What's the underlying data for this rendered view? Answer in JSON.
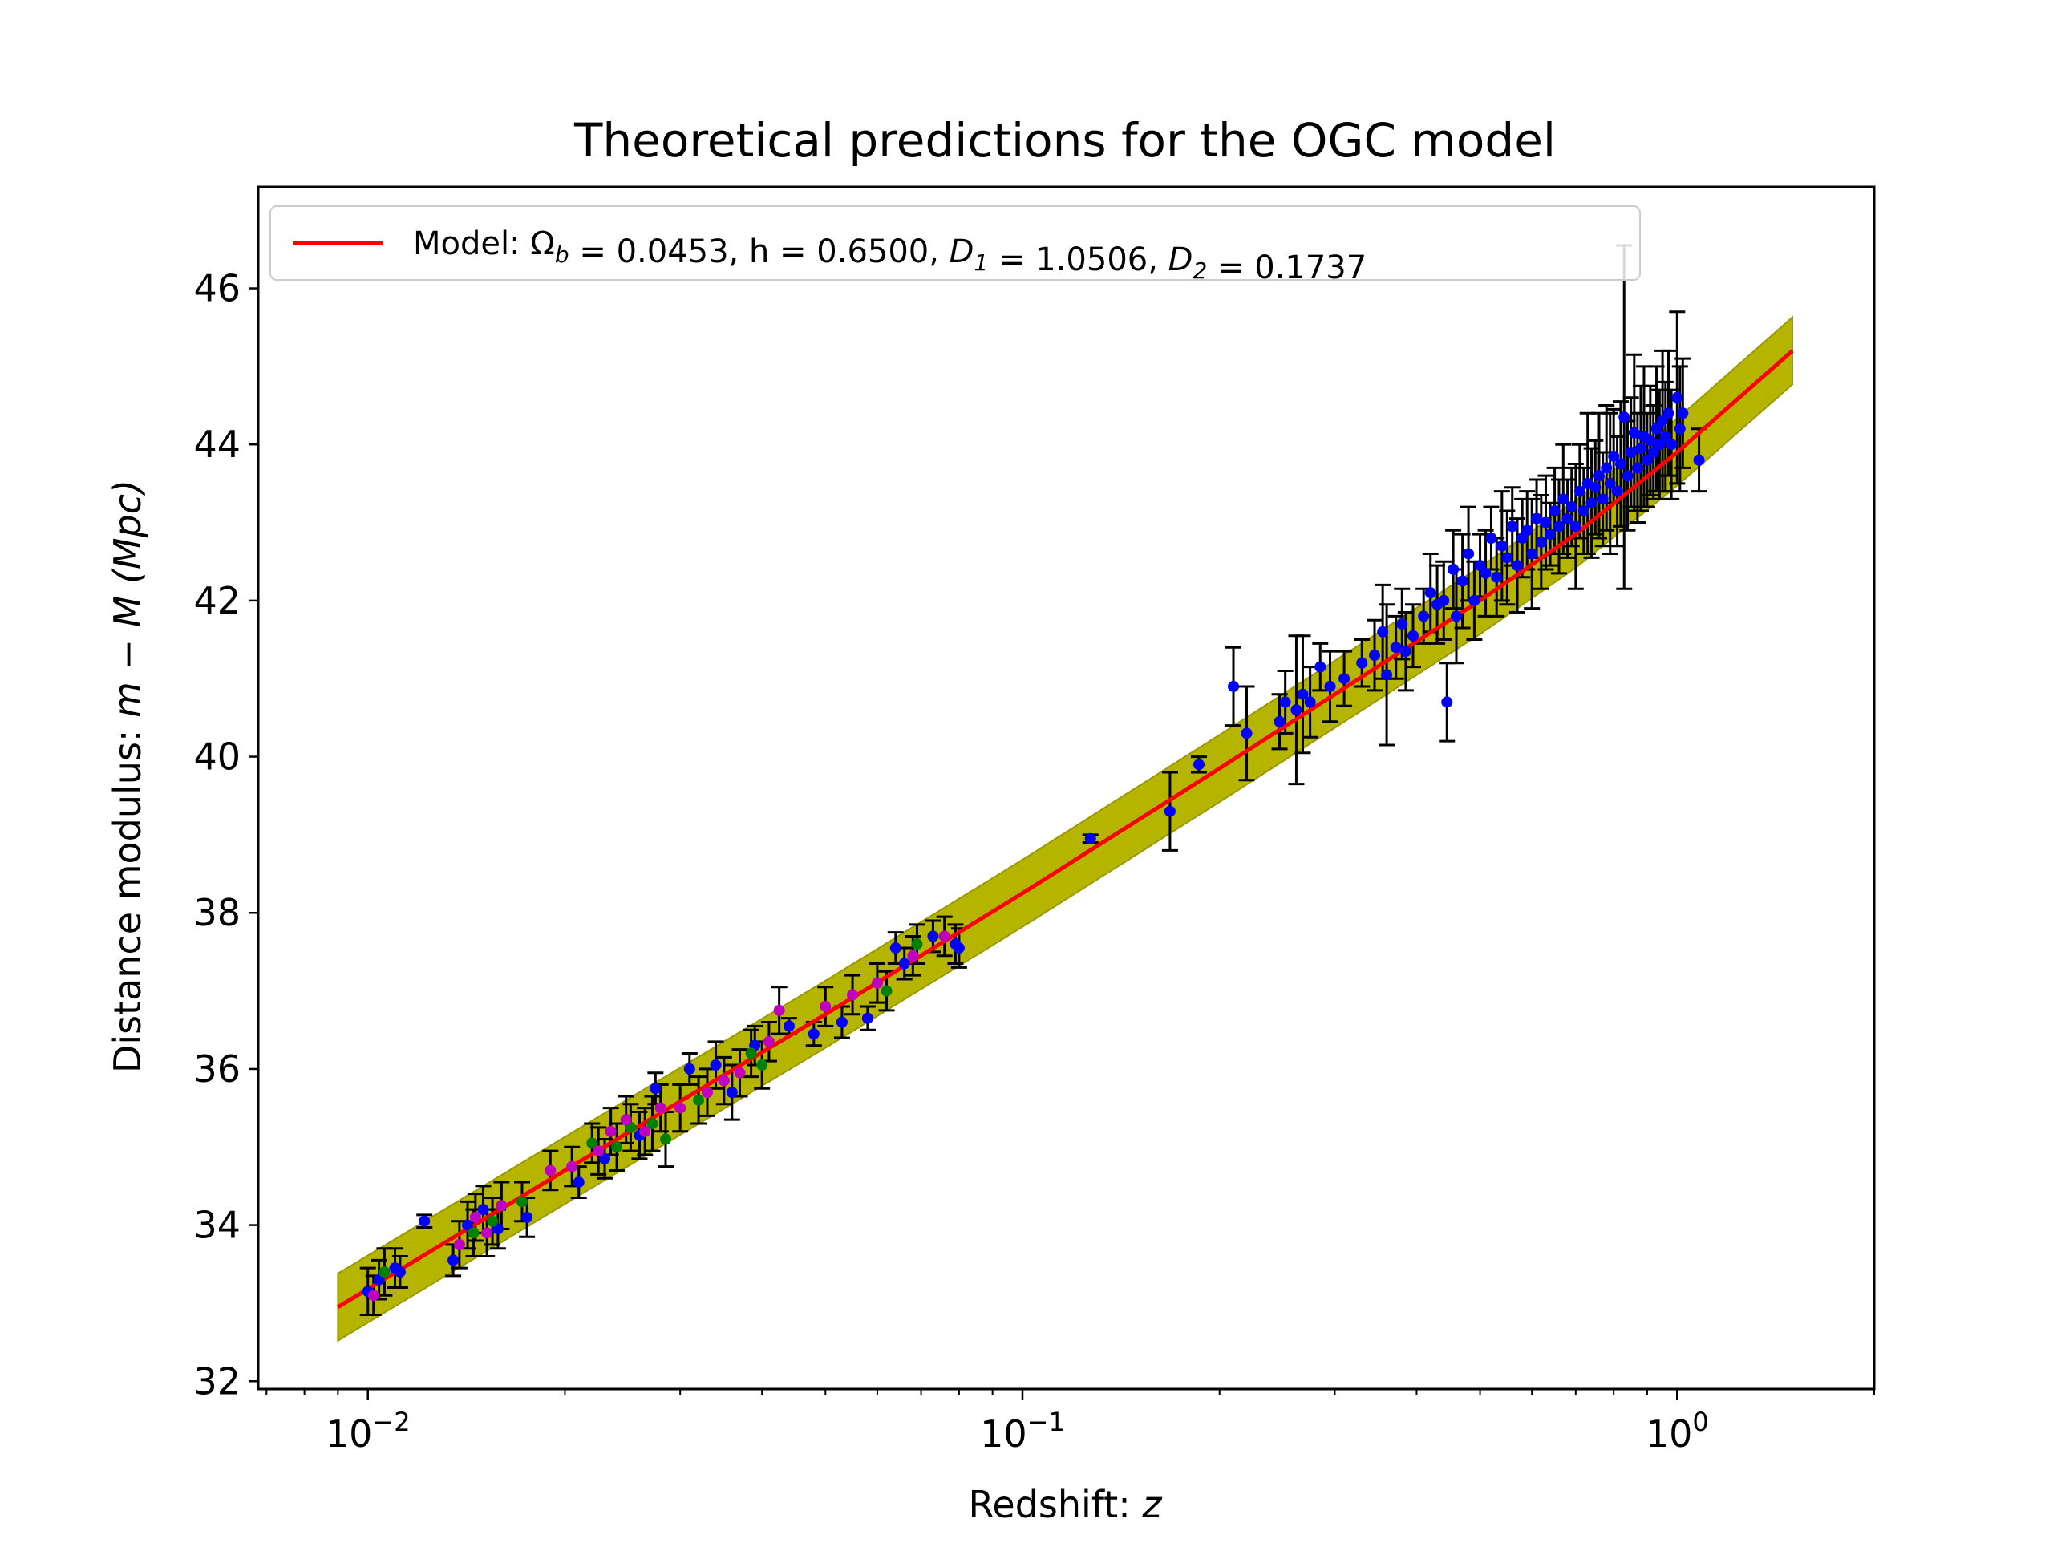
{
  "chart_data": {
    "type": "scatter",
    "title": "Theoretical predictions for the OGC model",
    "xlabel": {
      "text": "Redshift: ",
      "var": "z"
    },
    "ylabel": {
      "text": "Distance modulus: ",
      "var": "m − M",
      "unit": "(Mpc)"
    },
    "x_scale": "log",
    "xlim": [
      0.0068,
      2.0
    ],
    "ylim": [
      31.9,
      47.3
    ],
    "yticks": [
      32,
      34,
      36,
      38,
      40,
      42,
      44,
      46
    ],
    "xticks": [
      {
        "value": 0.01,
        "base": "10",
        "exp": "−2"
      },
      {
        "value": 0.1,
        "base": "10",
        "exp": "−1"
      },
      {
        "value": 1.0,
        "base": "10",
        "exp": "0"
      }
    ],
    "grid": false,
    "legend": {
      "placement": "top-left",
      "entries": [
        {
          "label": "Model: Ω_b = 0.0453, h = 0.6500, D_1 = 1.0506, D_2 = 0.1737",
          "parts": [
            {
              "t": "Model: Ω"
            },
            {
              "t": "b",
              "sub": true
            },
            {
              "t": " = 0.0453, h = 0.6500, "
            },
            {
              "t": "D",
              "italic": true
            },
            {
              "t": "1",
              "sub": true
            },
            {
              "t": " = 1.0506, "
            },
            {
              "t": "D",
              "italic": true
            },
            {
              "t": "2",
              "sub": true
            },
            {
              "t": " = 0.1737"
            }
          ],
          "color": "#ff0000"
        }
      ]
    },
    "model_curve": {
      "name": "Model: Ω_b = 0.0453, h = 0.6500, D_1 = 1.0506, D_2 = 0.1737",
      "color": "#ff0000",
      "x": [
        0.009,
        0.02,
        0.05,
        0.1,
        0.2,
        0.3,
        0.5,
        0.7,
        1.0,
        1.5
      ],
      "y": [
        32.95,
        34.7,
        36.7,
        38.25,
        39.85,
        40.8,
        42.0,
        42.85,
        43.9,
        45.2
      ]
    },
    "uncertainty_band": {
      "color": "#b5b500",
      "half_width": 0.43
    },
    "series": [
      {
        "color": "#0000ff",
        "points": [
          [
            0.01,
            33.15,
            0.3
          ],
          [
            0.0104,
            33.3,
            0.25
          ],
          [
            0.011,
            33.45,
            0.25
          ],
          [
            0.0112,
            33.4,
            0.2
          ],
          [
            0.0122,
            34.05,
            0.08
          ],
          [
            0.0135,
            33.55,
            0.2
          ],
          [
            0.0142,
            34.0,
            0.3
          ],
          [
            0.015,
            34.2,
            0.3
          ],
          [
            0.0158,
            33.95,
            0.25
          ],
          [
            0.0175,
            34.1,
            0.25
          ],
          [
            0.021,
            34.55,
            0.2
          ],
          [
            0.023,
            34.85,
            0.25
          ],
          [
            0.026,
            35.15,
            0.3
          ],
          [
            0.0275,
            35.75,
            0.2
          ],
          [
            0.031,
            36.0,
            0.2
          ],
          [
            0.034,
            36.05,
            0.3
          ],
          [
            0.036,
            35.7,
            0.35
          ],
          [
            0.039,
            36.3,
            0.25
          ],
          [
            0.044,
            36.55,
            0.1
          ],
          [
            0.048,
            36.45,
            0.15
          ],
          [
            0.053,
            36.6,
            0.2
          ],
          [
            0.058,
            36.65,
            0.15
          ],
          [
            0.064,
            37.55,
            0.2
          ],
          [
            0.066,
            37.35,
            0.2
          ],
          [
            0.073,
            37.7,
            0.2
          ],
          [
            0.079,
            37.6,
            0.25
          ],
          [
            0.08,
            37.55,
            0.25
          ],
          [
            0.127,
            38.95,
            0.05
          ],
          [
            0.168,
            39.3,
            0.5
          ],
          [
            0.186,
            39.9,
            0.1
          ],
          [
            0.21,
            40.9,
            0.5
          ],
          [
            0.22,
            40.3,
            0.6
          ],
          [
            0.247,
            40.45,
            0.35
          ],
          [
            0.252,
            40.7,
            0.4
          ],
          [
            0.262,
            40.6,
            0.95
          ],
          [
            0.268,
            40.8,
            0.75
          ],
          [
            0.275,
            40.7,
            0.45
          ],
          [
            0.285,
            41.15,
            0.3
          ],
          [
            0.295,
            40.9,
            0.45
          ],
          [
            0.31,
            41.0,
            0.35
          ],
          [
            0.33,
            41.2,
            0.3
          ],
          [
            0.345,
            41.3,
            0.45
          ],
          [
            0.355,
            41.6,
            0.6
          ],
          [
            0.36,
            41.05,
            0.9
          ],
          [
            0.372,
            41.4,
            0.4
          ],
          [
            0.38,
            41.7,
            0.45
          ],
          [
            0.385,
            41.35,
            0.5
          ],
          [
            0.395,
            41.55,
            0.4
          ],
          [
            0.41,
            41.8,
            0.35
          ],
          [
            0.42,
            42.1,
            0.5
          ],
          [
            0.43,
            41.95,
            0.5
          ],
          [
            0.44,
            42.0,
            0.5
          ],
          [
            0.445,
            40.7,
            0.5
          ],
          [
            0.455,
            42.4,
            0.5
          ],
          [
            0.46,
            41.8,
            0.6
          ],
          [
            0.47,
            42.25,
            0.6
          ],
          [
            0.48,
            42.6,
            0.6
          ],
          [
            0.49,
            42.0,
            0.5
          ],
          [
            0.5,
            42.45,
            0.4
          ],
          [
            0.51,
            42.35,
            0.55
          ],
          [
            0.52,
            42.8,
            0.4
          ],
          [
            0.53,
            42.3,
            0.5
          ],
          [
            0.54,
            42.7,
            0.7
          ],
          [
            0.55,
            42.55,
            0.6
          ],
          [
            0.56,
            42.95,
            0.5
          ],
          [
            0.57,
            42.45,
            0.6
          ],
          [
            0.58,
            42.8,
            0.5
          ],
          [
            0.59,
            42.9,
            0.5
          ],
          [
            0.6,
            42.6,
            0.7
          ],
          [
            0.61,
            43.05,
            0.5
          ],
          [
            0.62,
            42.75,
            0.6
          ],
          [
            0.63,
            43.0,
            0.6
          ],
          [
            0.64,
            42.85,
            0.4
          ],
          [
            0.65,
            43.15,
            0.55
          ],
          [
            0.66,
            42.95,
            0.6
          ],
          [
            0.67,
            43.3,
            0.7
          ],
          [
            0.68,
            43.05,
            0.5
          ],
          [
            0.69,
            43.2,
            0.5
          ],
          [
            0.7,
            42.95,
            0.8
          ],
          [
            0.71,
            43.4,
            0.6
          ],
          [
            0.72,
            43.15,
            0.55
          ],
          [
            0.73,
            43.5,
            0.9
          ],
          [
            0.74,
            43.25,
            0.7
          ],
          [
            0.75,
            43.45,
            0.6
          ],
          [
            0.76,
            43.6,
            0.8
          ],
          [
            0.77,
            43.3,
            0.6
          ],
          [
            0.78,
            43.7,
            0.8
          ],
          [
            0.79,
            43.5,
            0.9
          ],
          [
            0.8,
            43.85,
            0.6
          ],
          [
            0.81,
            43.4,
            0.7
          ],
          [
            0.82,
            43.75,
            0.8
          ],
          [
            0.83,
            44.35,
            2.2
          ],
          [
            0.84,
            43.6,
            0.7
          ],
          [
            0.85,
            43.9,
            0.7
          ],
          [
            0.86,
            44.15,
            1.0
          ],
          [
            0.87,
            43.7,
            0.7
          ],
          [
            0.88,
            43.95,
            0.8
          ],
          [
            0.89,
            44.1,
            0.9
          ],
          [
            0.9,
            43.8,
            0.6
          ],
          [
            0.91,
            44.05,
            0.7
          ],
          [
            0.92,
            43.9,
            0.6
          ],
          [
            0.93,
            44.2,
            0.8
          ],
          [
            0.94,
            44.0,
            0.7
          ],
          [
            0.95,
            44.3,
            0.9
          ],
          [
            0.96,
            44.1,
            0.7
          ],
          [
            0.97,
            44.4,
            0.8
          ],
          [
            0.98,
            44.0,
            0.7
          ],
          [
            1.0,
            44.6,
            1.1
          ],
          [
            1.01,
            44.2,
            0.8
          ],
          [
            1.02,
            44.4,
            0.7
          ],
          [
            1.08,
            43.8,
            0.4
          ]
        ]
      },
      {
        "color": "#008000",
        "points": [
          [
            0.0106,
            33.4,
            0.3
          ],
          [
            0.0145,
            33.9,
            0.3
          ],
          [
            0.0155,
            34.05,
            0.3
          ],
          [
            0.0172,
            34.3,
            0.25
          ],
          [
            0.022,
            35.05,
            0.25
          ],
          [
            0.024,
            35.0,
            0.3
          ],
          [
            0.0252,
            35.25,
            0.3
          ],
          [
            0.0272,
            35.3,
            0.35
          ],
          [
            0.0285,
            35.1,
            0.35
          ],
          [
            0.032,
            35.6,
            0.3
          ],
          [
            0.0385,
            36.2,
            0.3
          ],
          [
            0.04,
            36.05,
            0.3
          ],
          [
            0.062,
            37.0,
            0.25
          ],
          [
            0.069,
            37.6,
            0.25
          ]
        ]
      },
      {
        "color": "#c000c0",
        "points": [
          [
            0.0102,
            33.1,
            0.25
          ],
          [
            0.0138,
            33.75,
            0.3
          ],
          [
            0.0146,
            34.1,
            0.3
          ],
          [
            0.0152,
            33.9,
            0.3
          ],
          [
            0.016,
            34.25,
            0.3
          ],
          [
            0.019,
            34.7,
            0.25
          ],
          [
            0.0205,
            34.75,
            0.25
          ],
          [
            0.0225,
            34.95,
            0.3
          ],
          [
            0.0235,
            35.2,
            0.3
          ],
          [
            0.0248,
            35.35,
            0.3
          ],
          [
            0.0265,
            35.2,
            0.3
          ],
          [
            0.028,
            35.5,
            0.3
          ],
          [
            0.03,
            35.5,
            0.3
          ],
          [
            0.033,
            35.7,
            0.3
          ],
          [
            0.035,
            35.85,
            0.3
          ],
          [
            0.037,
            35.95,
            0.3
          ],
          [
            0.041,
            36.35,
            0.25
          ],
          [
            0.0425,
            36.75,
            0.3
          ],
          [
            0.05,
            36.8,
            0.25
          ],
          [
            0.055,
            36.95,
            0.25
          ],
          [
            0.06,
            37.1,
            0.25
          ],
          [
            0.068,
            37.45,
            0.25
          ],
          [
            0.076,
            37.7,
            0.25
          ]
        ]
      }
    ]
  }
}
